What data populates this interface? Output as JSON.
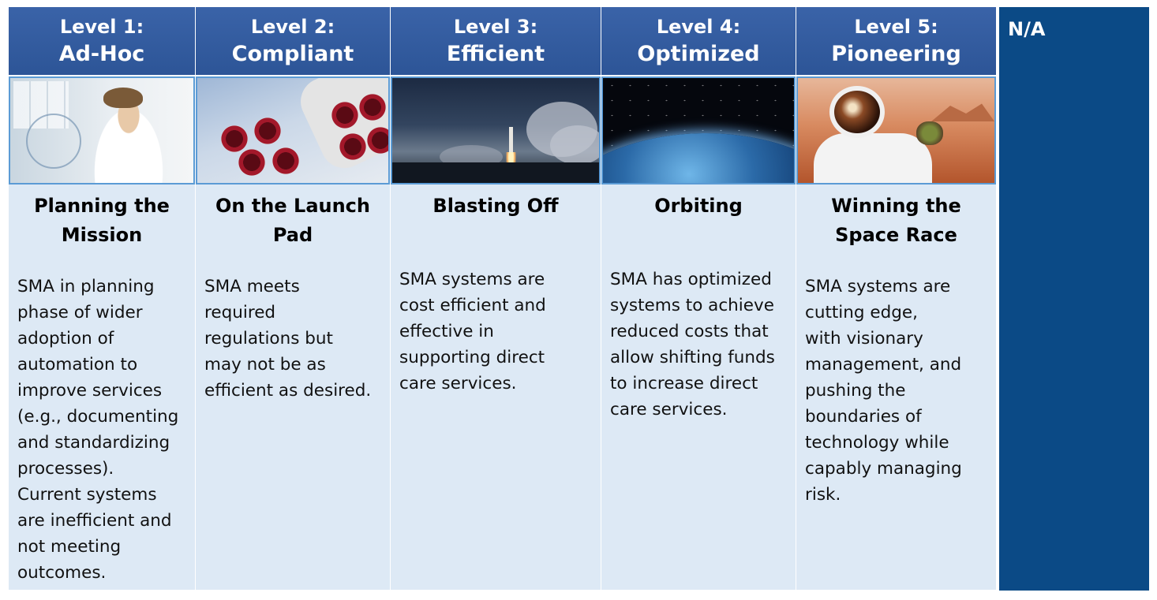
{
  "columns": [
    {
      "level": "Level 1:",
      "name": "Ad-Hoc",
      "image": "lab-scientist-image",
      "title": "Planning the\nMission",
      "description": "SMA in planning\nphase of wider\nadoption of\nautomation to\nimprove services\n(e.g., documenting\nand standardizing\nprocesses).\nCurrent systems\nare inefficient and\nnot meeting\noutcomes."
    },
    {
      "level": "Level 2:",
      "name": "Compliant",
      "image": "rocket-engines-image",
      "title": "On the Launch\nPad",
      "description": "SMA meets\nrequired\nregulations but\nmay not be as\nefficient as desired."
    },
    {
      "level": "Level 3:",
      "name": "Efficient",
      "image": "rocket-launch-image",
      "title": "Blasting Off",
      "description": "SMA systems are\ncost efficient and\neffective in\nsupporting  direct\ncare services."
    },
    {
      "level": "Level 4:",
      "name": "Optimized",
      "image": "earth-orbit-image",
      "title": "Orbiting",
      "description": "SMA has optimized\nsystems to achieve\nreduced costs that\nallow shifting funds\nto increase direct\ncare services."
    },
    {
      "level": "Level 5:",
      "name": "Pioneering",
      "image": "astronaut-mars-image",
      "title": "Winning the\nSpace Race",
      "description": "SMA systems are\ncutting edge,\nwith visionary\nmanagement, and\npushing the\nboundaries of\ntechnology while\ncapably managing\nrisk."
    }
  ],
  "na_label": "N/A",
  "colors": {
    "header": "#2d5597",
    "body": "#dde9f5",
    "na": "#0b4a86",
    "image_border": "#5b9bd5"
  }
}
